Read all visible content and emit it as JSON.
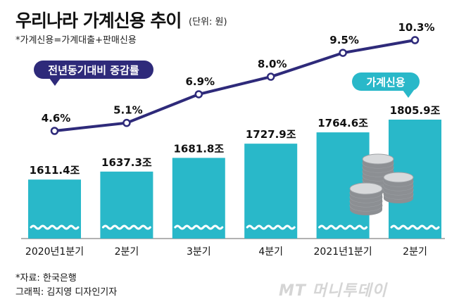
{
  "header": {
    "title": "우리나라 가계신용 추이",
    "unit": "(단위: 원)",
    "note": "*가계신용=가계대출+판매신용"
  },
  "footer": {
    "source": "*자료: 한국은행",
    "credit": "그래픽: 김지영 디자인기자",
    "brand": "MT 머니투데이"
  },
  "colors": {
    "bar": "#29b8c9",
    "line": "#2e2a7a",
    "text": "#111111"
  },
  "icons": [
    "coin-stack-icon"
  ],
  "chart_data": {
    "type": "bar",
    "categories": [
      "2020년1분기",
      "2분기",
      "3분기",
      "4분기",
      "2021년1분기",
      "2분기"
    ],
    "series": [
      {
        "name": "가계신용",
        "type": "bar",
        "values": [
          1611.4,
          1637.3,
          1681.8,
          1727.9,
          1764.6,
          1805.9
        ],
        "labels": [
          "1611.4조",
          "1637.3조",
          "1681.8조",
          "1727.9조",
          "1764.6조",
          "1805.9조"
        ]
      },
      {
        "name": "전년동기대비 증감률",
        "type": "line",
        "values": [
          4.6,
          5.1,
          6.9,
          8.0,
          9.5,
          10.3
        ],
        "labels": [
          "4.6%",
          "5.1%",
          "6.9%",
          "8.0%",
          "9.5%",
          "10.3%"
        ]
      }
    ]
  }
}
